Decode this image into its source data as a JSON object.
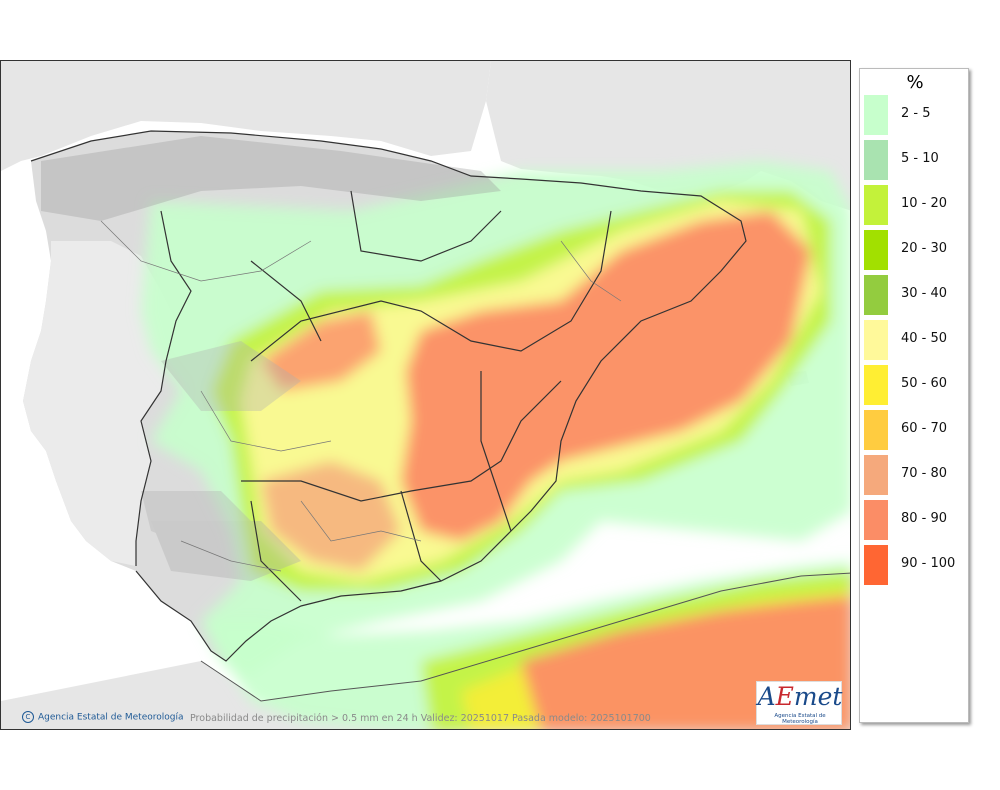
{
  "legend": {
    "title": "%",
    "items": [
      {
        "label": "2 - 5",
        "color": "#c7ffcc"
      },
      {
        "label": "5 - 10",
        "color": "#a9e3b0"
      },
      {
        "label": "10 - 20",
        "color": "#c3f23a"
      },
      {
        "label": "20 - 30",
        "color": "#a2e000"
      },
      {
        "label": "30 - 40",
        "color": "#93cc3f"
      },
      {
        "label": "40 - 50",
        "color": "#fff99a"
      },
      {
        "label": "50 - 60",
        "color": "#ffee33"
      },
      {
        "label": "60 - 70",
        "color": "#ffcc40"
      },
      {
        "label": "70 - 80",
        "color": "#f5a97c"
      },
      {
        "label": "80 - 90",
        "color": "#fb8d66"
      },
      {
        "label": "90 - 100",
        "color": "#ff6633"
      }
    ]
  },
  "footer": {
    "copyright_symbol": "C",
    "agency": "Agencia Estatal de Meteorología",
    "caption": "Probabilidad de precipitación > 0.5 mm en 24 h Validez: 20251017 Pasada modelo: 2025101700"
  },
  "logo": {
    "word_a": "A",
    "word_e": "E",
    "word_rest": "met",
    "subtitle": "Agencia Estatal de Meteorología"
  },
  "colors": {
    "land": "#e6e6e6",
    "sea": "#ffffff",
    "border": "#333333"
  }
}
